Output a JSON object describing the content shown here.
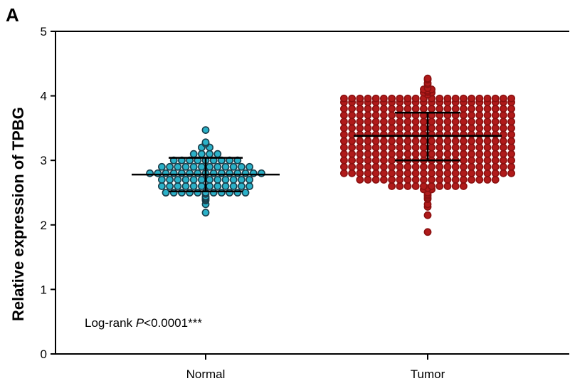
{
  "panel_label": "A",
  "chart_data": {
    "type": "scatter",
    "title": "",
    "xlabel": "",
    "ylabel": "Relative expression of TPBG",
    "ylim": [
      0,
      5
    ],
    "yticks": [
      "0",
      "1",
      "2",
      "3",
      "4",
      "5"
    ],
    "categories": [
      "Normal",
      "Tumor"
    ],
    "grid": false,
    "legend": "none",
    "annotation": {
      "prefix": "Log-rank ",
      "p_symbol": "P",
      "value": "<0.0001",
      "stars": "***"
    },
    "series": [
      {
        "category": "Normal",
        "color": "#2ab1c8",
        "edge_color": "#1a3d4a",
        "mean": 2.78,
        "sd_upper": 3.04,
        "sd_lower": 2.52,
        "values": [
          2.19,
          2.32,
          2.38,
          2.4,
          2.42,
          2.44,
          2.48,
          2.5,
          2.5,
          2.5,
          2.5,
          2.5,
          2.5,
          2.5,
          2.5,
          2.5,
          2.5,
          2.5,
          2.6,
          2.6,
          2.6,
          2.6,
          2.6,
          2.6,
          2.6,
          2.6,
          2.6,
          2.6,
          2.6,
          2.6,
          2.7,
          2.7,
          2.7,
          2.7,
          2.7,
          2.7,
          2.7,
          2.7,
          2.7,
          2.7,
          2.7,
          2.7,
          2.8,
          2.8,
          2.8,
          2.8,
          2.8,
          2.8,
          2.8,
          2.8,
          2.8,
          2.8,
          2.8,
          2.8,
          2.8,
          2.8,
          2.8,
          2.9,
          2.9,
          2.9,
          2.9,
          2.9,
          2.9,
          2.9,
          2.9,
          2.9,
          2.9,
          2.9,
          2.9,
          3.0,
          3.0,
          3.0,
          3.0,
          3.0,
          3.0,
          3.0,
          3.0,
          3.0,
          3.1,
          3.1,
          3.1,
          3.1,
          3.2,
          3.2,
          3.26,
          3.28,
          3.47
        ]
      },
      {
        "category": "Tumor",
        "color": "#b01a1a",
        "edge_color": "#8a1010",
        "mean": 3.38,
        "sd_upper": 3.74,
        "sd_lower": 3.0,
        "values": [
          1.89,
          2.15,
          2.28,
          2.32,
          2.4,
          2.42,
          2.45,
          2.47,
          2.5,
          2.55,
          2.55,
          2.57,
          2.6,
          2.6,
          2.6,
          2.6,
          2.6,
          2.6,
          2.6,
          2.6,
          2.6,
          2.6,
          2.7,
          2.7,
          2.7,
          2.7,
          2.7,
          2.7,
          2.7,
          2.7,
          2.7,
          2.7,
          2.7,
          2.7,
          2.7,
          2.7,
          2.7,
          2.7,
          2.7,
          2.7,
          2.8,
          2.8,
          2.8,
          2.8,
          2.8,
          2.8,
          2.8,
          2.8,
          2.8,
          2.8,
          2.8,
          2.8,
          2.8,
          2.8,
          2.8,
          2.8,
          2.8,
          2.8,
          2.8,
          2.8,
          2.8,
          2.8,
          2.9,
          2.9,
          2.9,
          2.9,
          2.9,
          2.9,
          2.9,
          2.9,
          2.9,
          2.9,
          2.9,
          2.9,
          2.9,
          2.9,
          2.9,
          2.9,
          2.9,
          2.9,
          2.9,
          2.9,
          2.9,
          2.9,
          3.0,
          3.0,
          3.0,
          3.0,
          3.0,
          3.0,
          3.0,
          3.0,
          3.0,
          3.0,
          3.0,
          3.0,
          3.0,
          3.0,
          3.0,
          3.0,
          3.0,
          3.0,
          3.0,
          3.0,
          3.0,
          3.0,
          3.1,
          3.1,
          3.1,
          3.1,
          3.1,
          3.1,
          3.1,
          3.1,
          3.1,
          3.1,
          3.1,
          3.1,
          3.1,
          3.1,
          3.1,
          3.1,
          3.1,
          3.1,
          3.1,
          3.1,
          3.1,
          3.1,
          3.2,
          3.2,
          3.2,
          3.2,
          3.2,
          3.2,
          3.2,
          3.2,
          3.2,
          3.2,
          3.2,
          3.2,
          3.2,
          3.2,
          3.2,
          3.2,
          3.2,
          3.2,
          3.2,
          3.2,
          3.2,
          3.2,
          3.3,
          3.3,
          3.3,
          3.3,
          3.3,
          3.3,
          3.3,
          3.3,
          3.3,
          3.3,
          3.3,
          3.3,
          3.3,
          3.3,
          3.3,
          3.3,
          3.3,
          3.3,
          3.3,
          3.3,
          3.3,
          3.3,
          3.4,
          3.4,
          3.4,
          3.4,
          3.4,
          3.4,
          3.4,
          3.4,
          3.4,
          3.4,
          3.4,
          3.4,
          3.4,
          3.4,
          3.4,
          3.4,
          3.4,
          3.4,
          3.4,
          3.4,
          3.4,
          3.4,
          3.5,
          3.5,
          3.5,
          3.5,
          3.5,
          3.5,
          3.5,
          3.5,
          3.5,
          3.5,
          3.5,
          3.5,
          3.5,
          3.5,
          3.5,
          3.5,
          3.5,
          3.5,
          3.5,
          3.5,
          3.5,
          3.5,
          3.6,
          3.6,
          3.6,
          3.6,
          3.6,
          3.6,
          3.6,
          3.6,
          3.6,
          3.6,
          3.6,
          3.6,
          3.6,
          3.6,
          3.6,
          3.6,
          3.6,
          3.6,
          3.6,
          3.6,
          3.6,
          3.6,
          3.7,
          3.7,
          3.7,
          3.7,
          3.7,
          3.7,
          3.7,
          3.7,
          3.7,
          3.7,
          3.7,
          3.7,
          3.7,
          3.7,
          3.7,
          3.7,
          3.7,
          3.7,
          3.7,
          3.7,
          3.7,
          3.7,
          3.8,
          3.8,
          3.8,
          3.8,
          3.8,
          3.8,
          3.8,
          3.8,
          3.8,
          3.8,
          3.8,
          3.8,
          3.8,
          3.8,
          3.8,
          3.8,
          3.8,
          3.8,
          3.8,
          3.8,
          3.8,
          3.8,
          3.9,
          3.9,
          3.9,
          3.9,
          3.9,
          3.9,
          3.9,
          3.9,
          3.9,
          3.9,
          3.9,
          3.9,
          3.9,
          3.9,
          3.9,
          3.9,
          3.9,
          3.9,
          3.9,
          3.9,
          3.9,
          3.9,
          3.96,
          3.96,
          3.96,
          3.96,
          3.96,
          3.96,
          3.96,
          3.96,
          3.96,
          3.96,
          3.96,
          3.96,
          3.96,
          3.96,
          3.96,
          3.96,
          3.96,
          3.96,
          3.96,
          3.96,
          3.96,
          3.96,
          4.02,
          4.05,
          4.05,
          4.06,
          4.08,
          4.1,
          4.1,
          4.12,
          4.18,
          4.2,
          4.25,
          4.26,
          4.27
        ]
      }
    ]
  }
}
